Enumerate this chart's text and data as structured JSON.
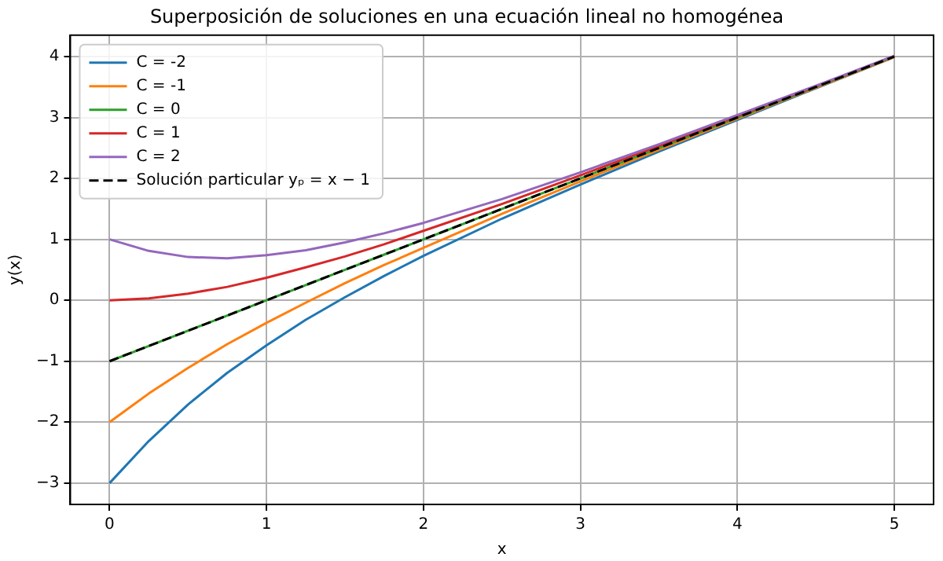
{
  "chart_data": {
    "type": "line",
    "title": "Superposición de soluciones en una ecuación lineal no homogénea",
    "xlabel": "x",
    "ylabel": "y(x)",
    "x": [
      0,
      0.25,
      0.5,
      0.75,
      1,
      1.25,
      1.5,
      1.75,
      2,
      2.5,
      3,
      3.5,
      4,
      4.5,
      5
    ],
    "series": [
      {
        "name": "C = -2",
        "color": "#1f77b4",
        "values": [
          -3,
          -2.31,
          -1.71,
          -1.19,
          -0.74,
          -0.32,
          0.05,
          0.4,
          0.73,
          1.34,
          1.9,
          2.44,
          2.96,
          3.48,
          3.99
        ]
      },
      {
        "name": "C = -1",
        "color": "#ff7f0e",
        "values": [
          -2,
          -1.53,
          -1.11,
          -0.72,
          -0.37,
          -0.04,
          0.28,
          0.58,
          0.86,
          1.42,
          1.95,
          2.47,
          2.98,
          3.49,
          3.99
        ]
      },
      {
        "name": "C = 0",
        "color": "#2ca02c",
        "values": [
          -1,
          -0.75,
          -0.5,
          -0.25,
          0,
          0.25,
          0.5,
          0.75,
          1,
          1.5,
          2,
          2.5,
          3,
          3.5,
          4
        ]
      },
      {
        "name": "C = 1",
        "color": "#d62728",
        "values": [
          0,
          0.03,
          0.11,
          0.22,
          0.37,
          0.54,
          0.72,
          0.92,
          1.14,
          1.58,
          2.05,
          2.53,
          3.02,
          3.51,
          4.01
        ]
      },
      {
        "name": "C = 2",
        "color": "#9467bd",
        "values": [
          1,
          0.81,
          0.71,
          0.69,
          0.74,
          0.82,
          0.95,
          1.1,
          1.27,
          1.66,
          2.1,
          2.56,
          3.04,
          3.52,
          4.01
        ]
      },
      {
        "name": "Solución particular yₚ = x − 1",
        "color": "#000000",
        "line_style": "dashed",
        "values": [
          -1,
          -0.75,
          -0.5,
          -0.25,
          0,
          0.25,
          0.5,
          0.75,
          1,
          1.5,
          2,
          2.5,
          3,
          3.5,
          4
        ]
      }
    ],
    "xlim": [
      -0.25,
      5.25
    ],
    "xticks": [
      0,
      1,
      2,
      3,
      4,
      5
    ],
    "ylim": [
      -3.35,
      4.35
    ],
    "yticks": [
      -3,
      -2,
      -1,
      0,
      1,
      2,
      3,
      4
    ],
    "grid": true,
    "legend": "top left",
    "marker": "none",
    "line_style": "solid"
  }
}
